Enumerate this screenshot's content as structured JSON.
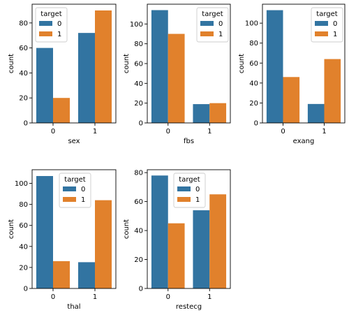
{
  "colors": {
    "target_0": "#3274a1",
    "target_1": "#e1812c",
    "axis": "#000000",
    "legend_frame": "#cccccc"
  },
  "chart_data": [
    {
      "type": "bar",
      "xlabel": "sex",
      "ylabel": "count",
      "categories": [
        "0",
        "1"
      ],
      "legend_title": "target",
      "legend_placement": "top-left",
      "ylim": [
        0,
        95
      ],
      "yticks": [
        0,
        20,
        40,
        60,
        80
      ],
      "grid": false,
      "series": [
        {
          "name": "0",
          "color": "#3274a1",
          "values": [
            60,
            72
          ]
        },
        {
          "name": "1",
          "color": "#e1812c",
          "values": [
            20,
            90
          ]
        }
      ]
    },
    {
      "type": "bar",
      "xlabel": "fbs",
      "ylabel": "count",
      "categories": [
        "0",
        "1"
      ],
      "legend_title": "target",
      "legend_placement": "top-right",
      "ylim": [
        0,
        120
      ],
      "yticks": [
        0,
        20,
        40,
        60,
        80,
        100
      ],
      "grid": false,
      "series": [
        {
          "name": "0",
          "color": "#3274a1",
          "values": [
            114,
            19
          ]
        },
        {
          "name": "1",
          "color": "#e1812c",
          "values": [
            90,
            20
          ]
        }
      ]
    },
    {
      "type": "bar",
      "xlabel": "exang",
      "ylabel": "count",
      "categories": [
        "0",
        "1"
      ],
      "legend_title": "target",
      "legend_placement": "top-right",
      "ylim": [
        0,
        119
      ],
      "yticks": [
        0,
        20,
        40,
        60,
        80,
        100
      ],
      "grid": false,
      "series": [
        {
          "name": "0",
          "color": "#3274a1",
          "values": [
            113,
            19
          ]
        },
        {
          "name": "1",
          "color": "#e1812c",
          "values": [
            46,
            64
          ]
        }
      ]
    },
    {
      "type": "bar",
      "xlabel": "thal",
      "ylabel": "count",
      "categories": [
        "0",
        "1"
      ],
      "legend_title": "target",
      "legend_placement": "top-center",
      "ylim": [
        0,
        113
      ],
      "yticks": [
        0,
        20,
        40,
        60,
        80,
        100
      ],
      "grid": false,
      "series": [
        {
          "name": "0",
          "color": "#3274a1",
          "values": [
            107,
            25
          ]
        },
        {
          "name": "1",
          "color": "#e1812c",
          "values": [
            26,
            84
          ]
        }
      ]
    },
    {
      "type": "bar",
      "xlabel": "restecg",
      "ylabel": "count",
      "categories": [
        "0",
        "1"
      ],
      "legend_title": "target",
      "legend_placement": "top-center",
      "ylim": [
        0,
        82
      ],
      "yticks": [
        0,
        20,
        40,
        60,
        80
      ],
      "grid": false,
      "series": [
        {
          "name": "0",
          "color": "#3274a1",
          "values": [
            78,
            54
          ]
        },
        {
          "name": "1",
          "color": "#e1812c",
          "values": [
            45,
            65
          ]
        }
      ]
    }
  ]
}
